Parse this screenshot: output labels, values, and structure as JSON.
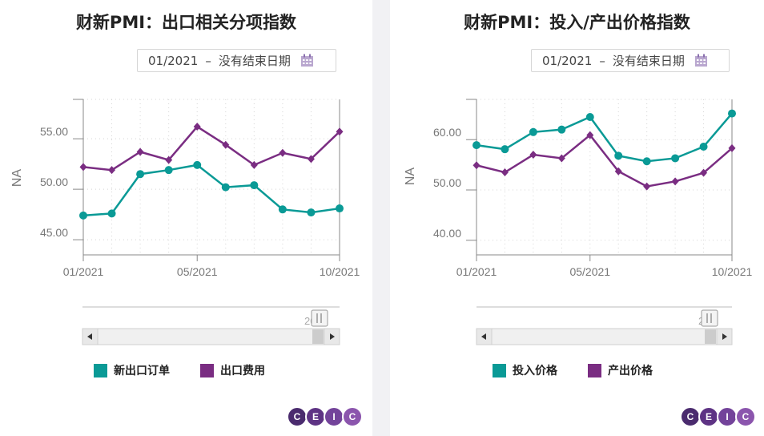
{
  "colors": {
    "teal": "#0a9a96",
    "purple": "#7a2d82",
    "axis": "#777777",
    "grid": "#cccccc"
  },
  "panels": [
    {
      "title": "财新PMI：出口相关分项指数",
      "date_range": {
        "start": "01/2021",
        "dash": "–",
        "end": "没有结束日期"
      },
      "legend": [
        {
          "label": "新出口订单",
          "color": "#0a9a96"
        },
        {
          "label": "出口费用",
          "color": "#7a2d82"
        }
      ],
      "navigator_label": "20"
    },
    {
      "title": "财新PMI：投入/产出价格指数",
      "date_range": {
        "start": "01/2021",
        "dash": "–",
        "end": "没有结束日期"
      },
      "legend": [
        {
          "label": "投入价格",
          "color": "#0a9a96"
        },
        {
          "label": "产出价格",
          "color": "#7a2d82"
        }
      ],
      "navigator_label": "20"
    }
  ],
  "chart_data": [
    {
      "type": "line",
      "title": "财新PMI：出口相关分项指数",
      "ylabel": "NA",
      "x": [
        "01/2021",
        "02/2021",
        "03/2021",
        "04/2021",
        "05/2021",
        "06/2021",
        "07/2021",
        "08/2021",
        "09/2021",
        "10/2021"
      ],
      "x_tick_labels": [
        "01/2021",
        "05/2021",
        "10/2021"
      ],
      "y_tick_labels": [
        "45.00",
        "50.00",
        "55.00"
      ],
      "ylim": [
        43.5,
        58.9
      ],
      "grid": true,
      "series": [
        {
          "name": "新出口订单",
          "color": "#0a9a96",
          "marker": "circle",
          "values": [
            47.4,
            47.6,
            51.5,
            51.9,
            52.4,
            50.2,
            50.4,
            48.0,
            47.7,
            48.1
          ]
        },
        {
          "name": "出口费用",
          "color": "#7a2d82",
          "marker": "diamond",
          "values": [
            52.2,
            51.9,
            53.7,
            52.9,
            56.2,
            54.4,
            52.4,
            53.6,
            53.0,
            55.7
          ]
        }
      ]
    },
    {
      "type": "line",
      "title": "财新PMI：投入/产出价格指数",
      "ylabel": "NA",
      "x": [
        "01/2021",
        "02/2021",
        "03/2021",
        "04/2021",
        "05/2021",
        "06/2021",
        "07/2021",
        "08/2021",
        "09/2021",
        "10/2021"
      ],
      "x_tick_labels": [
        "01/2021",
        "05/2021",
        "10/2021"
      ],
      "y_tick_labels": [
        "40.00",
        "50.00",
        "60.00"
      ],
      "ylim": [
        37.1,
        68.0
      ],
      "grid": true,
      "series": [
        {
          "name": "投入价格",
          "color": "#0a9a96",
          "marker": "circle",
          "values": [
            58.9,
            58.1,
            61.5,
            62.0,
            64.5,
            56.8,
            55.7,
            56.3,
            58.6,
            65.2
          ]
        },
        {
          "name": "产出价格",
          "color": "#7a2d82",
          "marker": "diamond",
          "values": [
            54.9,
            53.5,
            57.0,
            56.3,
            60.9,
            53.7,
            50.7,
            51.7,
            53.4,
            58.3
          ]
        }
      ]
    }
  ]
}
